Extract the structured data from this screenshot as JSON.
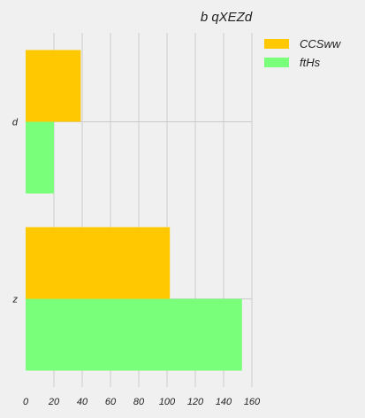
{
  "chart_data": {
    "type": "bar",
    "orientation": "horizontal",
    "title": "b qXEZd",
    "categories": [
      "d",
      "z"
    ],
    "series": [
      {
        "name": "CCSww",
        "values": [
          39,
          102
        ],
        "color": "#ffc800"
      },
      {
        "name": "ftHs",
        "values": [
          20,
          153
        ],
        "color": "#7aff7a"
      }
    ],
    "xlabel": "",
    "ylabel": "",
    "xlim": [
      0,
      160
    ],
    "xticks": [
      0,
      20,
      40,
      60,
      80,
      100,
      120,
      140,
      160
    ],
    "grid": true,
    "legend_position": "top-right"
  }
}
